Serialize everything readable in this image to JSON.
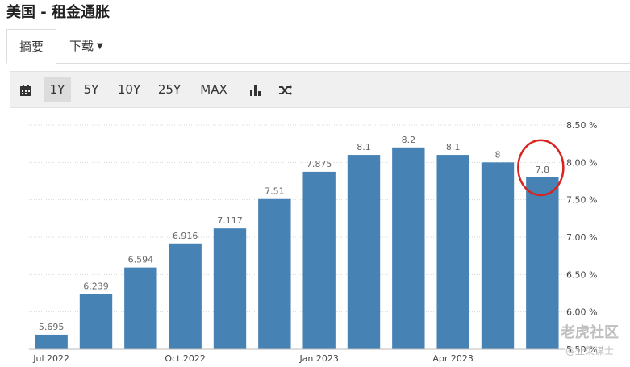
{
  "header": {
    "title": "美国 - 租金通胀"
  },
  "tabs": [
    {
      "label": "摘要"
    },
    {
      "label": "下载"
    }
  ],
  "toolbar": {
    "ranges": [
      "1Y",
      "5Y",
      "10Y",
      "25Y",
      "MAX"
    ],
    "active_range": "1Y",
    "icons": [
      "calendar-icon",
      "bar-chart-icon",
      "shuffle-icon"
    ]
  },
  "watermark": {
    "text": "老虎社区",
    "sub": "@韭菜谋士"
  },
  "chart_data": {
    "type": "bar",
    "categories": [
      "2022-07",
      "2022-08",
      "2022-09",
      "2022-10",
      "2022-11",
      "2022-12",
      "2023-01",
      "2023-02",
      "2023-03",
      "2023-04",
      "2023-05",
      "2023-06"
    ],
    "values": [
      5.695,
      6.239,
      6.594,
      6.916,
      7.117,
      7.51,
      7.875,
      8.1,
      8.2,
      8.1,
      8.0,
      7.8
    ],
    "value_labels": [
      "5.695",
      "6.239",
      "6.594",
      "6.916",
      "7.117",
      "7.51",
      "7.875",
      "8.1",
      "8.2",
      "8.1",
      "8",
      "7.8"
    ],
    "x_tick_labels": [
      {
        "index": 0,
        "label": "Jul 2022"
      },
      {
        "index": 3,
        "label": "Oct 2022"
      },
      {
        "index": 6,
        "label": "Jan 2023"
      },
      {
        "index": 9,
        "label": "Apr 2023"
      }
    ],
    "y_ticks": [
      5.5,
      6.0,
      6.5,
      7.0,
      7.5,
      8.0,
      8.5
    ],
    "y_tick_labels": [
      "5.50 %",
      "6.00 %",
      "6.50 %",
      "7.00 %",
      "7.50 %",
      "8.00 %",
      "8.50 %"
    ],
    "ylim": [
      5.5,
      8.5
    ],
    "grid": true,
    "y_axis_position": "right",
    "bar_color": "#4682b4",
    "highlight_color": "#d9231f",
    "highlight_index": 11
  }
}
